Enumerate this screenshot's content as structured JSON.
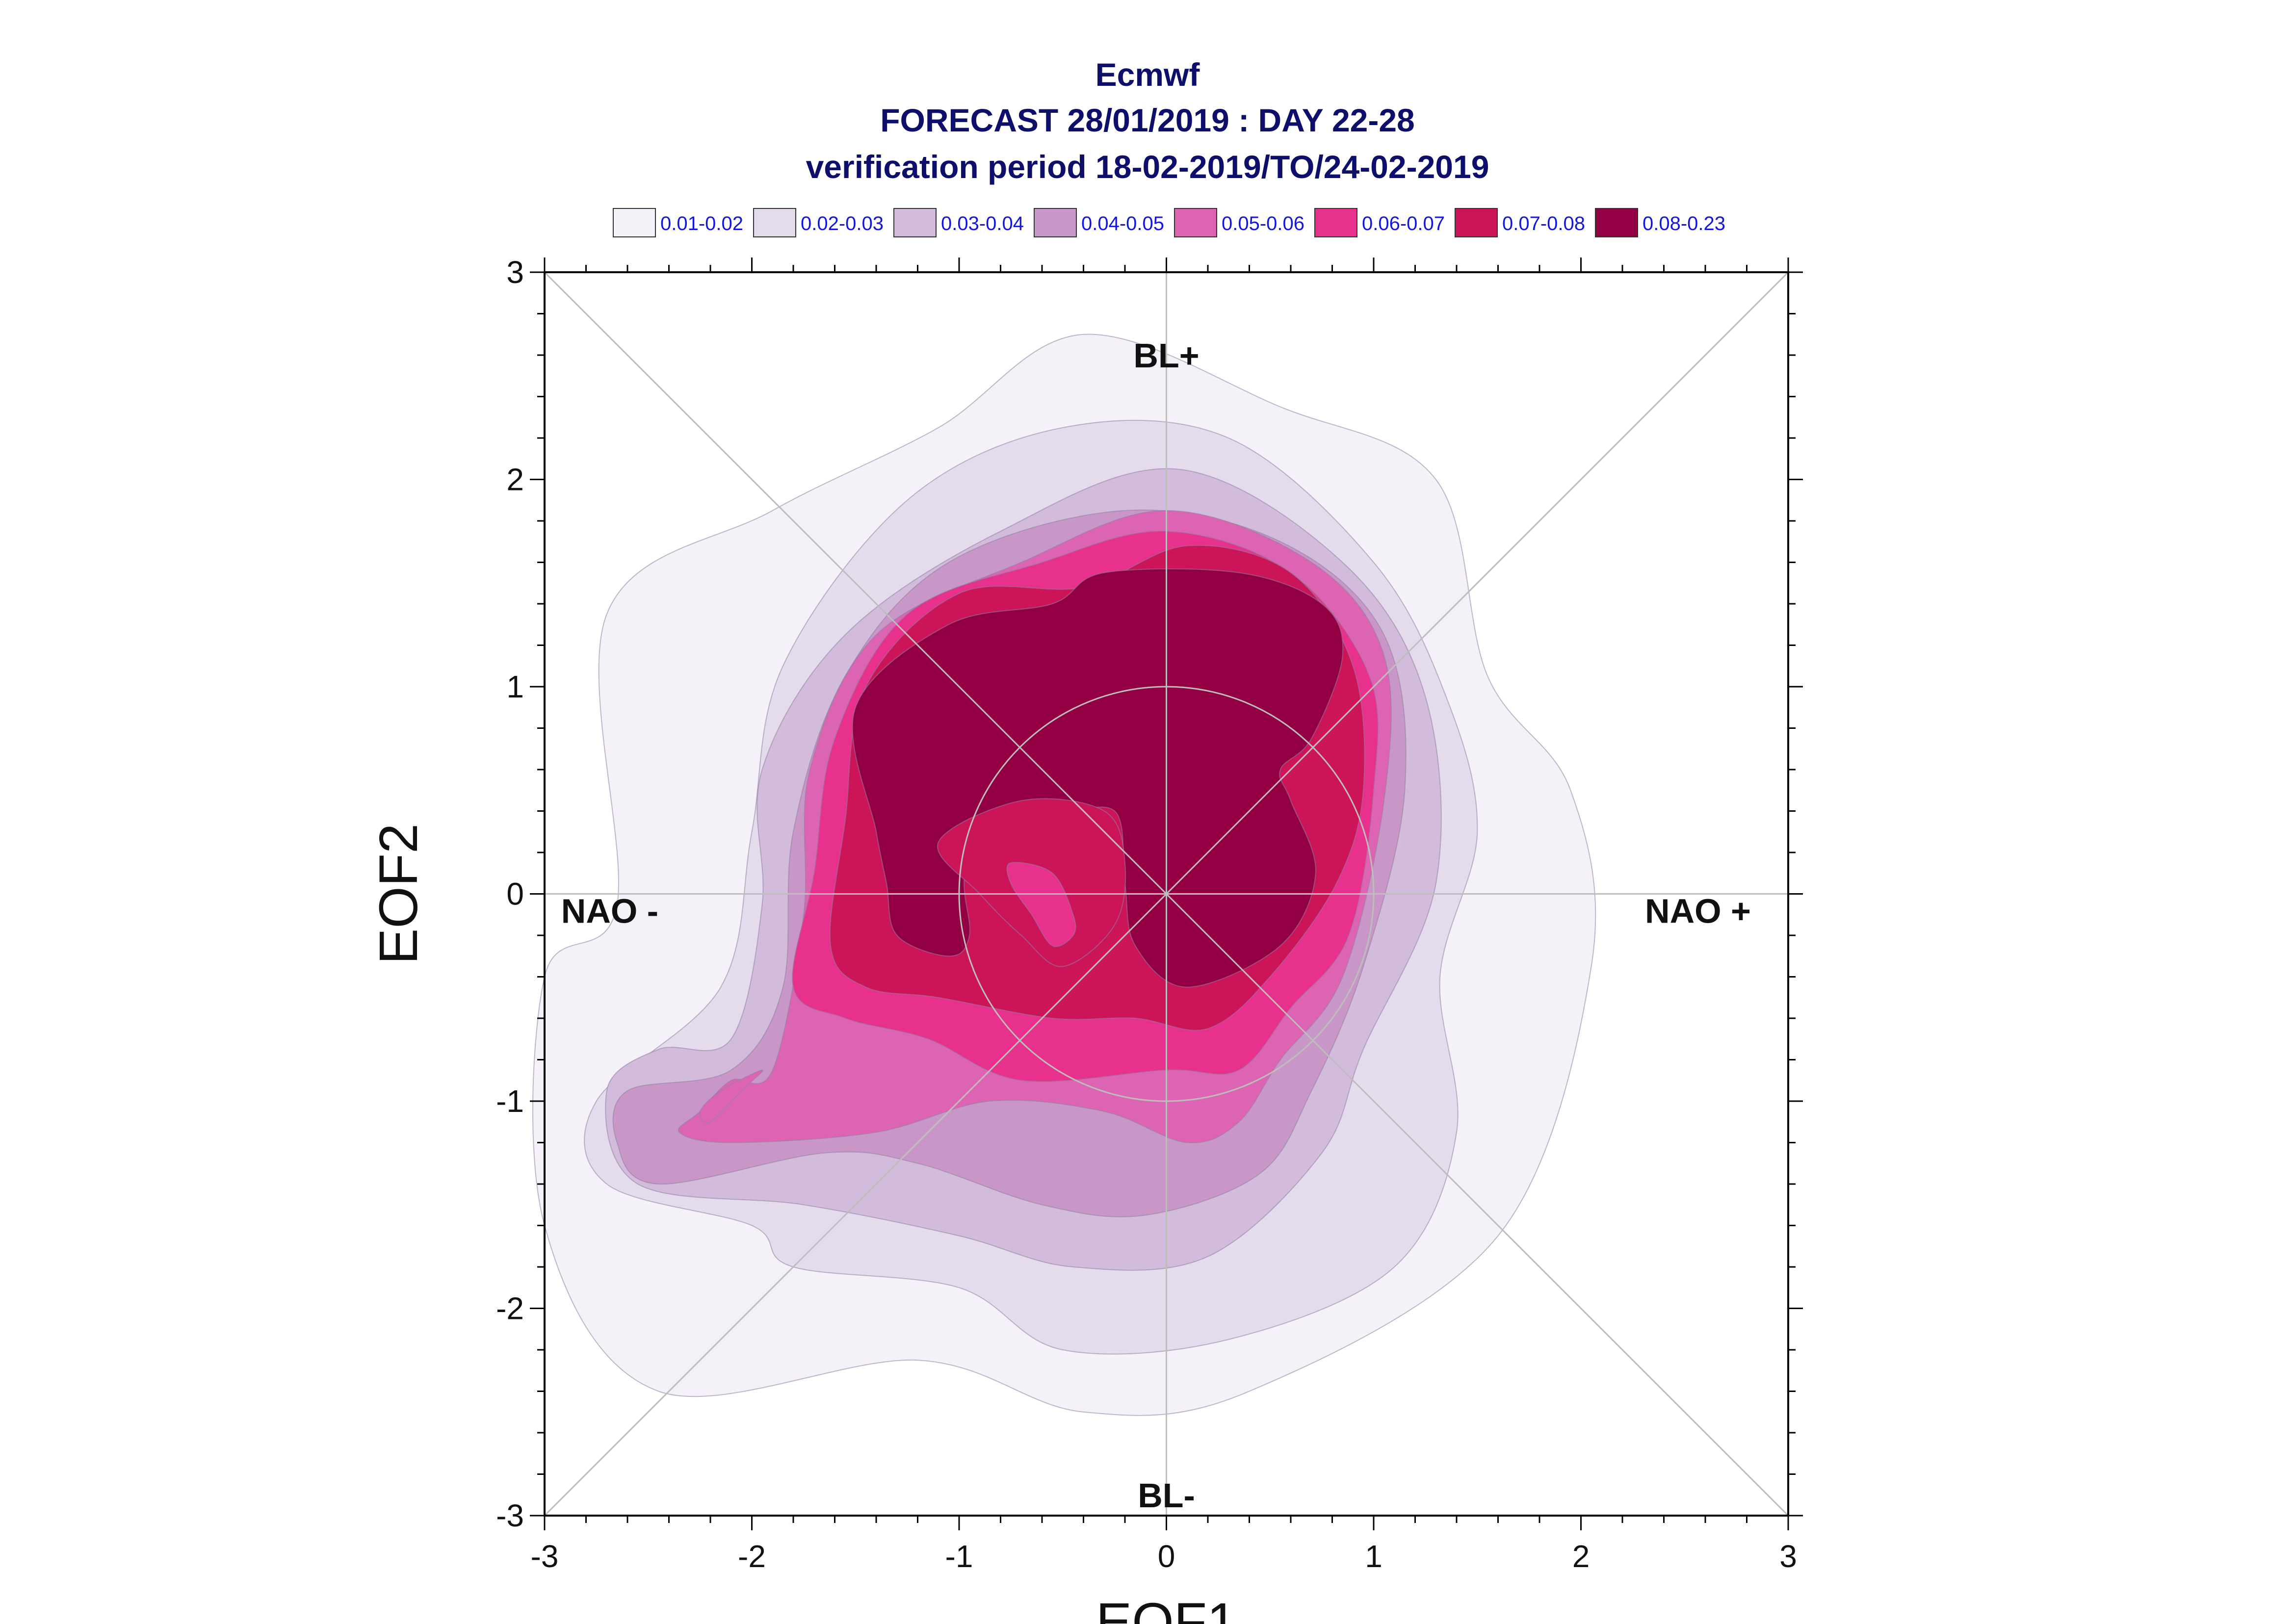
{
  "chart_data": {
    "type": "contour",
    "title_lines": [
      "Ecmwf",
      "FORECAST 28/01/2019 : DAY 22-28",
      "verification period 18-02-2019/TO/24-02-2019"
    ],
    "xlabel": "EOF1",
    "ylabel": "EOF2",
    "xlim": [
      -3,
      3
    ],
    "ylim": [
      -3,
      3
    ],
    "xticks": [
      "-3",
      "-2",
      "-1",
      "0",
      "1",
      "2",
      "3"
    ],
    "yticks": [
      "-3",
      "-2",
      "-1",
      "0",
      "1",
      "2",
      "3"
    ],
    "legend_position": "top",
    "legend": [
      {
        "label": "0.01-0.02",
        "color": "#f4f2f8"
      },
      {
        "label": "0.02-0.03",
        "color": "#e4dced"
      },
      {
        "label": "0.03-0.04",
        "color": "#d2bbdb"
      },
      {
        "label": "0.04-0.05",
        "color": "#c996c8"
      },
      {
        "label": "0.05-0.06",
        "color": "#dd64b2"
      },
      {
        "label": "0.06-0.07",
        "color": "#e8308d"
      },
      {
        "label": "0.07-0.08",
        "color": "#cc1559"
      },
      {
        "label": "0.08-0.23",
        "color": "#920043"
      }
    ],
    "regime_labels": {
      "top": "BL+",
      "bottom": "BL-",
      "left": "NAO -",
      "right": "NAO +"
    },
    "reference_circle_radius": 1,
    "contours": [
      {
        "level": "0.01-0.02",
        "points": [
          [
            -3.0,
            -1.6
          ],
          [
            -2.45,
            -2.4
          ],
          [
            -1.2,
            -2.25
          ],
          [
            -0.4,
            -2.5
          ],
          [
            0.4,
            -2.4
          ],
          [
            1.6,
            -1.65
          ],
          [
            2.05,
            -0.35
          ],
          [
            1.95,
            0.5
          ],
          [
            1.55,
            1.05
          ],
          [
            1.3,
            2.0
          ],
          [
            0.55,
            2.35
          ],
          [
            -0.4,
            2.7
          ],
          [
            -1.1,
            2.25
          ],
          [
            -1.9,
            1.85
          ],
          [
            -2.7,
            1.35
          ],
          [
            -2.65,
            -0.05
          ],
          [
            -3.0,
            -0.4
          ]
        ]
      },
      {
        "level": "0.02-0.03",
        "points": [
          [
            -2.0,
            -1.6
          ],
          [
            -1.8,
            -1.8
          ],
          [
            -1.0,
            -1.9
          ],
          [
            -0.5,
            -2.2
          ],
          [
            0.3,
            -2.15
          ],
          [
            1.1,
            -1.8
          ],
          [
            1.4,
            -1.15
          ],
          [
            1.32,
            -0.4
          ],
          [
            1.5,
            0.3
          ],
          [
            1.35,
            0.95
          ],
          [
            1.0,
            1.6
          ],
          [
            0.3,
            2.2
          ],
          [
            -0.5,
            2.25
          ],
          [
            -1.25,
            1.9
          ],
          [
            -1.85,
            1.1
          ],
          [
            -2.0,
            0.3
          ],
          [
            -2.15,
            -0.45
          ],
          [
            -2.75,
            -1.0
          ],
          [
            -2.7,
            -1.4
          ]
        ]
      },
      {
        "level": "0.03-0.04",
        "points": [
          [
            -2.7,
            -0.95
          ],
          [
            -2.45,
            -0.75
          ],
          [
            -2.1,
            -0.7
          ],
          [
            -1.95,
            -0.05
          ],
          [
            -1.95,
            0.6
          ],
          [
            -1.55,
            1.25
          ],
          [
            -0.8,
            1.75
          ],
          [
            0.05,
            2.05
          ],
          [
            0.85,
            1.6
          ],
          [
            1.25,
            0.95
          ],
          [
            1.3,
            0.05
          ],
          [
            0.95,
            -0.75
          ],
          [
            0.75,
            -1.25
          ],
          [
            0.2,
            -1.75
          ],
          [
            -0.45,
            -1.8
          ],
          [
            -1.0,
            -1.65
          ],
          [
            -1.75,
            -1.5
          ],
          [
            -2.55,
            -1.4
          ]
        ]
      },
      {
        "level": "0.04-0.05",
        "points": [
          [
            -2.6,
            -0.95
          ],
          [
            -2.1,
            -0.85
          ],
          [
            -1.85,
            -0.45
          ],
          [
            -1.8,
            0.3
          ],
          [
            -1.55,
            1.05
          ],
          [
            -1.05,
            1.6
          ],
          [
            -0.2,
            1.85
          ],
          [
            0.55,
            1.7
          ],
          [
            1.05,
            1.25
          ],
          [
            1.15,
            0.5
          ],
          [
            0.95,
            -0.35
          ],
          [
            0.7,
            -0.95
          ],
          [
            0.45,
            -1.35
          ],
          [
            -0.1,
            -1.55
          ],
          [
            -0.6,
            -1.5
          ],
          [
            -1.2,
            -1.3
          ],
          [
            -1.65,
            -1.25
          ],
          [
            -2.45,
            -1.4
          ],
          [
            -2.65,
            -1.2
          ]
        ]
      },
      {
        "level": "0.05-0.06",
        "points": [
          [
            -2.25,
            -1.05
          ],
          [
            -2.1,
            -0.9
          ],
          [
            -1.9,
            -0.85
          ],
          [
            -1.75,
            -0.1
          ],
          [
            -1.72,
            0.6
          ],
          [
            -1.4,
            1.25
          ],
          [
            -0.7,
            1.6
          ],
          [
            0.0,
            1.85
          ],
          [
            0.7,
            1.6
          ],
          [
            1.05,
            1.15
          ],
          [
            1.05,
            0.45
          ],
          [
            0.85,
            -0.4
          ],
          [
            0.55,
            -0.8
          ],
          [
            0.35,
            -1.1
          ],
          [
            0.1,
            -1.2
          ],
          [
            -0.3,
            -1.05
          ],
          [
            -0.85,
            -1.0
          ],
          [
            -1.4,
            -1.15
          ],
          [
            -2.1,
            -1.2
          ],
          [
            -2.35,
            -1.15
          ]
        ]
      },
      {
        "level": "0.06-0.07",
        "points": [
          [
            -1.8,
            -0.45
          ],
          [
            -1.7,
            0.1
          ],
          [
            -1.6,
            0.75
          ],
          [
            -1.25,
            1.35
          ],
          [
            -0.6,
            1.6
          ],
          [
            0.0,
            1.75
          ],
          [
            0.6,
            1.55
          ],
          [
            0.98,
            1.05
          ],
          [
            1.0,
            0.5
          ],
          [
            0.88,
            -0.2
          ],
          [
            0.6,
            -0.55
          ],
          [
            0.35,
            -0.85
          ],
          [
            0.0,
            -0.85
          ],
          [
            -0.7,
            -0.9
          ],
          [
            -1.15,
            -0.7
          ],
          [
            -1.55,
            -0.6
          ]
        ]
      },
      {
        "level": "0.07-0.08",
        "points": [
          [
            -1.62,
            -0.25
          ],
          [
            -1.55,
            0.35
          ],
          [
            -1.45,
            1.0
          ],
          [
            -1.0,
            1.45
          ],
          [
            -0.4,
            1.48
          ],
          [
            0.1,
            1.68
          ],
          [
            0.6,
            1.55
          ],
          [
            0.9,
            1.1
          ],
          [
            0.95,
            0.5
          ],
          [
            0.82,
            0.05
          ],
          [
            0.5,
            -0.4
          ],
          [
            0.2,
            -0.65
          ],
          [
            -0.15,
            -0.6
          ],
          [
            -0.55,
            -0.6
          ],
          [
            -1.1,
            -0.5
          ],
          [
            -1.45,
            -0.45
          ]
        ]
      },
      {
        "level": "0.08-0.23",
        "points": [
          [
            -1.3,
            -0.2
          ],
          [
            -1.05,
            -0.3
          ],
          [
            -0.95,
            -0.2
          ],
          [
            -0.95,
            0.15
          ],
          [
            -0.55,
            0.35
          ],
          [
            -0.25,
            0.4
          ],
          [
            -0.2,
            0.05
          ],
          [
            -0.15,
            -0.25
          ],
          [
            0.1,
            -0.45
          ],
          [
            0.55,
            -0.25
          ],
          [
            0.72,
            0.1
          ],
          [
            0.6,
            0.45
          ],
          [
            0.55,
            0.6
          ],
          [
            0.7,
            0.75
          ],
          [
            0.85,
            1.15
          ],
          [
            0.75,
            1.4
          ],
          [
            0.35,
            1.55
          ],
          [
            -0.3,
            1.55
          ],
          [
            -0.55,
            1.4
          ],
          [
            -1.05,
            1.3
          ],
          [
            -1.5,
            0.9
          ],
          [
            -1.4,
            0.3
          ],
          [
            -1.35,
            0.05
          ]
        ]
      },
      {
        "level": "0.07-0.08",
        "points": [
          [
            -1.1,
            0.25
          ],
          [
            -0.7,
            0.45
          ],
          [
            -0.3,
            0.4
          ],
          [
            -0.2,
            0.15
          ],
          [
            -0.25,
            -0.15
          ],
          [
            -0.5,
            -0.35
          ],
          [
            -0.7,
            -0.2
          ],
          [
            -0.9,
            0.0
          ]
        ]
      },
      {
        "level": "0.06-0.07",
        "points": [
          [
            -0.75,
            0.15
          ],
          [
            -0.55,
            0.1
          ],
          [
            -0.45,
            -0.1
          ],
          [
            -0.45,
            -0.2
          ],
          [
            -0.55,
            -0.25
          ],
          [
            -0.65,
            -0.1
          ],
          [
            -0.75,
            0.05
          ]
        ]
      },
      {
        "level": "0.05-0.06",
        "points": [
          [
            -2.2,
            -1.1
          ],
          [
            -2.05,
            -0.95
          ],
          [
            -1.95,
            -0.85
          ],
          [
            -2.15,
            -0.95
          ],
          [
            -2.25,
            -1.05
          ]
        ]
      }
    ]
  }
}
